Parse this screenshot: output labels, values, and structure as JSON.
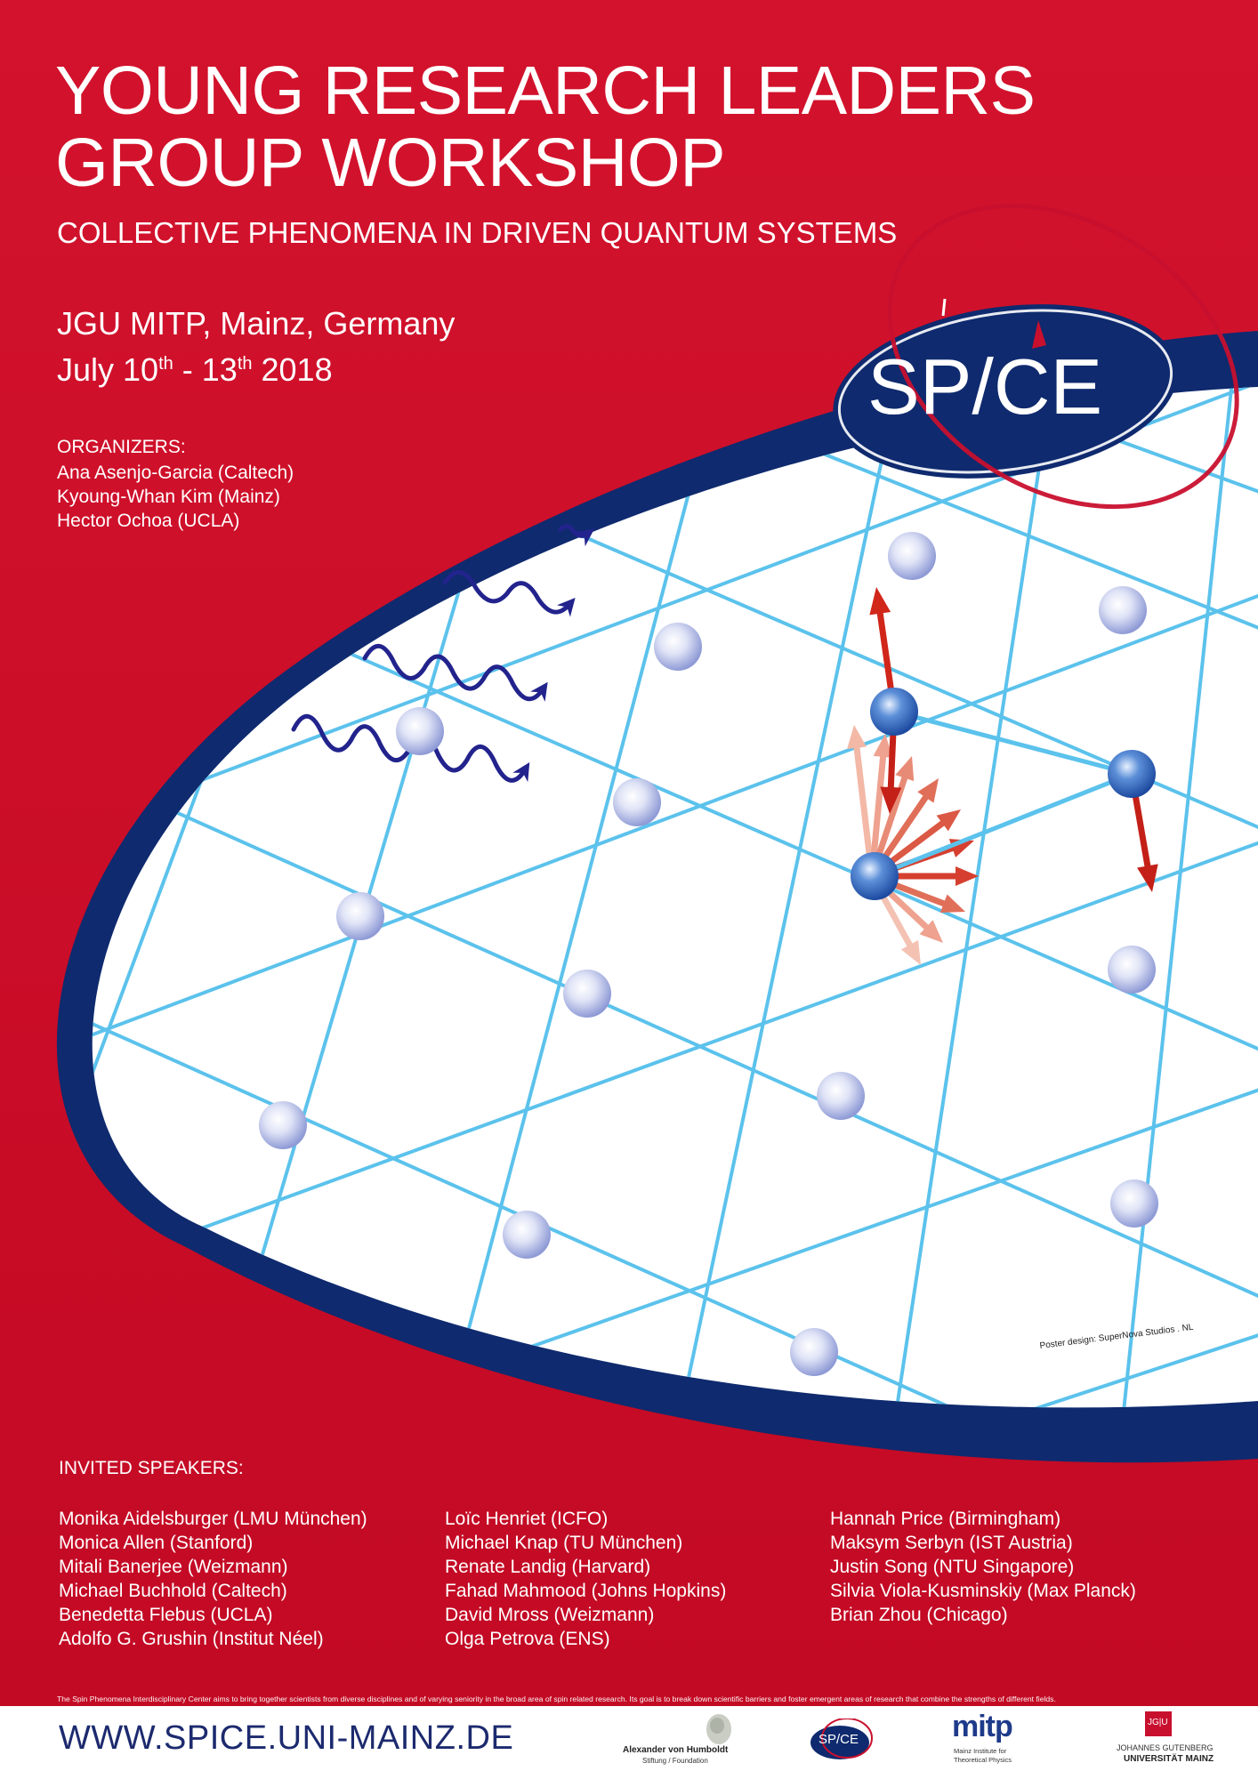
{
  "title": {
    "line1": "YOUNG RESEARCH LEADERS",
    "line2": "GROUP WORKSHOP"
  },
  "subtitle": "COLLECTIVE PHENOMENA IN DRIVEN QUANTUM SYSTEMS",
  "venue": "JGU MITP, Mainz, Germany",
  "dates": {
    "month": "July 10",
    "start_sup": "th",
    "sep": " - 13",
    "end_sup": "th",
    "year": " 2018"
  },
  "organizers": {
    "heading": "ORGANIZERS:",
    "names": [
      "Ana Asenjo-Garcia (Caltech)",
      "Kyoung-Whan Kim (Mainz)",
      "Hector Ochoa (UCLA)"
    ]
  },
  "logo": {
    "sp": "SP",
    "slash": "/",
    "ce": "CE"
  },
  "credit": "Poster design: SuperNova Studios . NL",
  "speakers": {
    "heading": "INVITED SPEAKERS:",
    "col1": [
      "Monika Aidelsburger (LMU München)",
      "Monica Allen (Stanford)",
      "Mitali Banerjee (Weizmann)",
      "Michael Buchhold (Caltech)",
      "Benedetta Flebus (UCLA)",
      "Adolfo G. Grushin (Institut Néel)"
    ],
    "col2": [
      "Loïc Henriet (ICFO)",
      "Michael Knap (TU München)",
      "Renate Landig (Harvard)",
      "Fahad Mahmood (Johns Hopkins)",
      "David Mross (Weizmann)",
      "Olga Petrova (ENS)"
    ],
    "col3": [
      "Hannah Price (Birmingham)",
      "Maksym Serbyn (IST Austria)",
      "Justin Song (NTU Singapore)",
      "Silvia Viola-Kusminskiy (Max Planck)",
      "Brian Zhou (Chicago)"
    ]
  },
  "mission": "The Spin Phenomena Interdisciplinary Center aims to bring together scientists from diverse disciplines and of varying seniority in the broad area of spin related research. Its goal is to break down scientific barriers and foster emergent areas of research that combine the strengths of different fields.",
  "footer": {
    "url": "WWW.SPICE.UNI-MAINZ.DE",
    "humboldt_name": "Alexander von Humboldt",
    "humboldt_sub": "Stiftung / Foundation",
    "spice_small": "SP/CE",
    "mitp_logo": "mitp",
    "mitp_line1": "Mainz Institute for",
    "mitp_line2": "Theoretical Physics",
    "jgu_mark": "JG|U",
    "jgu_line1": "JOHANNES GUTENBERG",
    "jgu_line2": "UNIVERSITÄT MAINZ"
  },
  "colors": {
    "background_red": "#d0102a",
    "navy": "#1c2a6e",
    "lattice_blue": "#5bc2ec",
    "arrow_red": "#d1261a",
    "wave_blue": "#22238c"
  },
  "icons": [
    "lattice-graphic",
    "atom-node-icon",
    "wave-arrow-icon",
    "spin-arrow-icon",
    "humboldt-portrait-icon",
    "jgu-logo-icon"
  ]
}
